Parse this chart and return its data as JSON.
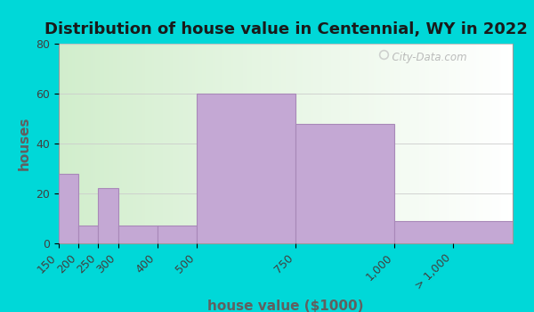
{
  "title": "Distribution of house value in Centennial, WY in 2022",
  "xlabel": "house value ($1000)",
  "ylabel": "houses",
  "ylim": [
    0,
    80
  ],
  "bar_color": "#c4a8d4",
  "bar_edgecolor": "#a888b8",
  "outer_bg": "#00d8d8",
  "plot_bg_left": "#d0eecc",
  "plot_bg_right": "#f5f5f5",
  "watermark": "  City-Data.com",
  "bin_edges": [
    150,
    200,
    250,
    300,
    400,
    500,
    750,
    1000,
    1300
  ],
  "bin_heights": [
    28,
    7,
    22,
    7,
    7,
    60,
    48,
    9
  ],
  "tick_labels": [
    "150",
    "200",
    "250",
    "300",
    "400",
    "500",
    "750",
    "1,000",
    "> 1,000"
  ],
  "tick_positions": [
    150,
    200,
    250,
    300,
    400,
    500,
    750,
    1000,
    1150
  ],
  "title_fontsize": 13,
  "axis_label_fontsize": 11,
  "tick_fontsize": 9,
  "yticks": [
    0,
    20,
    40,
    60,
    80
  ]
}
